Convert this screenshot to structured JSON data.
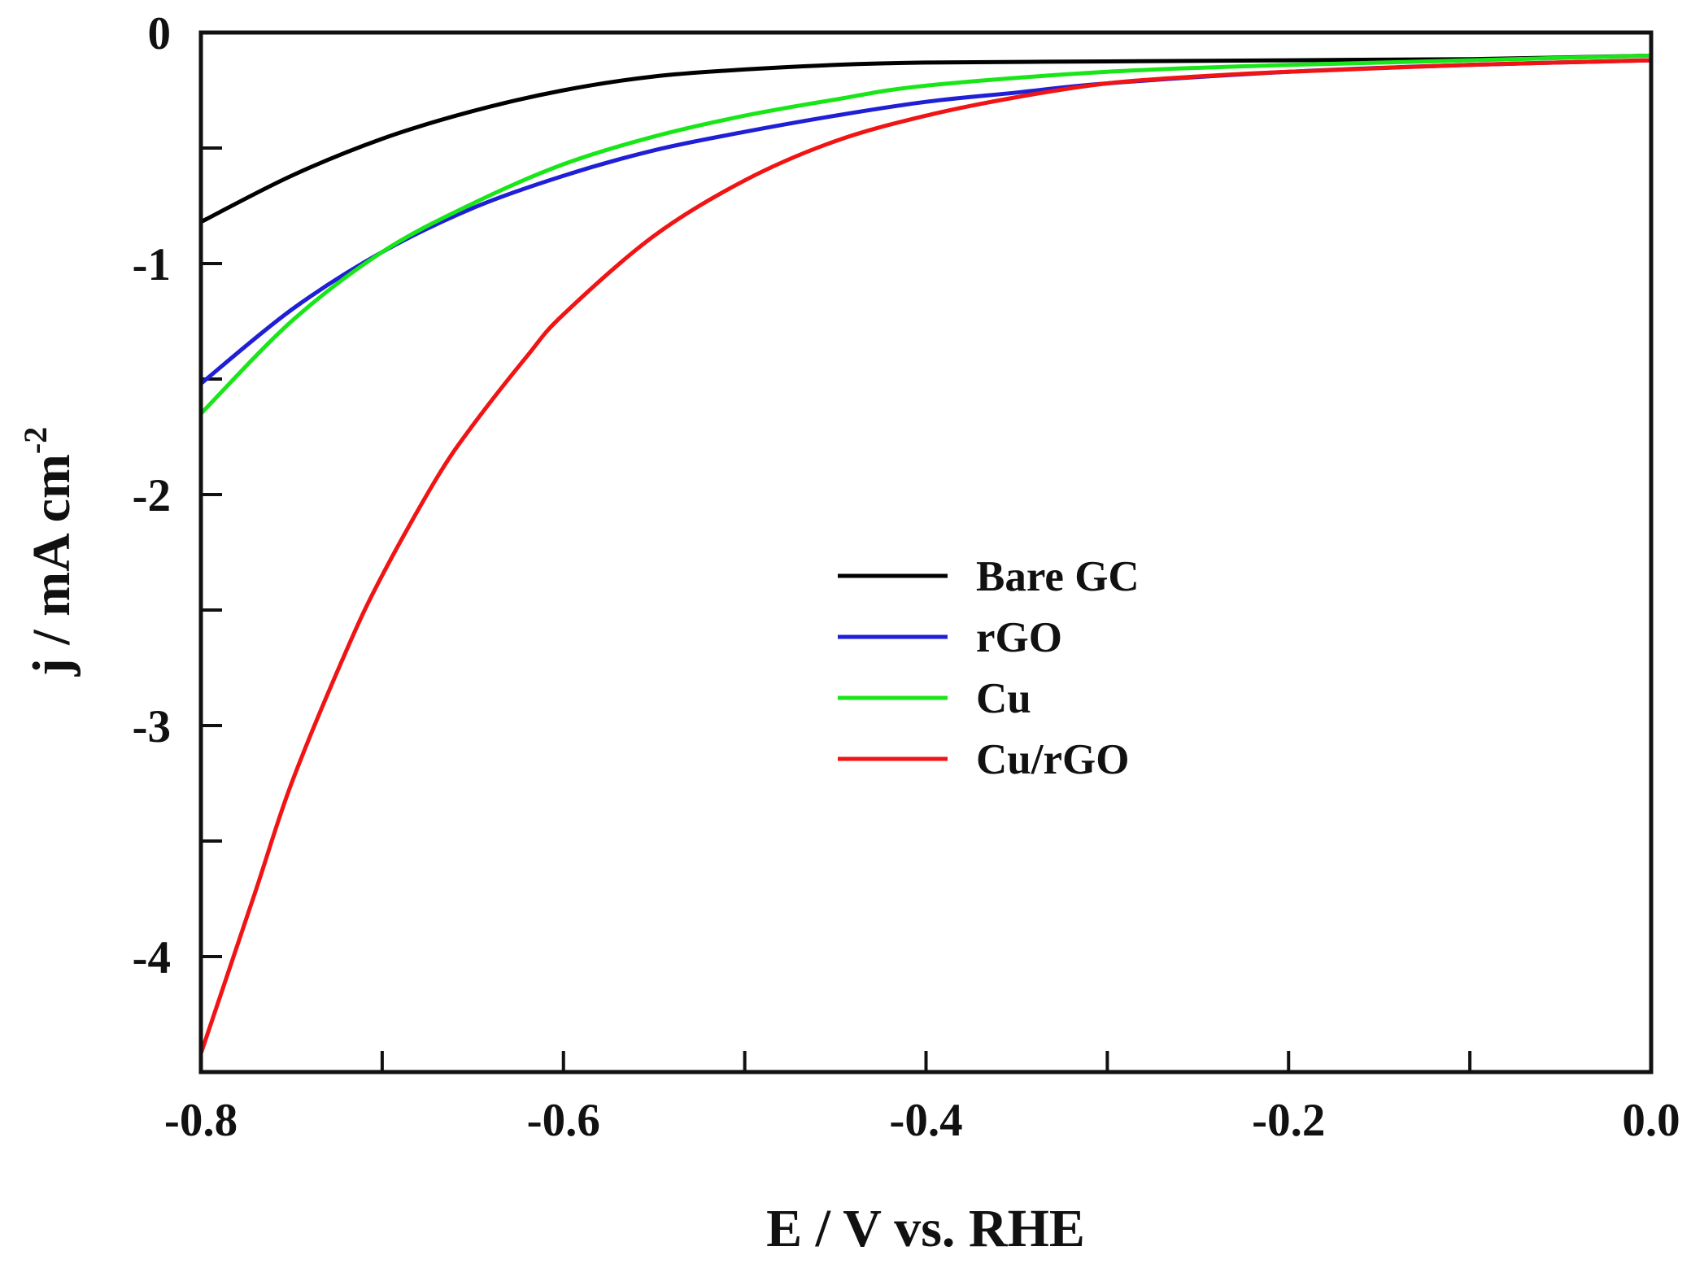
{
  "chart_data": {
    "type": "line",
    "title": "",
    "xlabel": "E / V vs. RHE",
    "ylabel": "j / mA cm",
    "ylabel_superscript": "-2",
    "xlim": [
      -0.8,
      0.0
    ],
    "ylim": [
      -4.5,
      0.0
    ],
    "x_ticks": [
      -0.8,
      -0.6,
      -0.4,
      -0.2,
      0.0
    ],
    "x_tick_labels": [
      "-0.8",
      "-0.6",
      "-0.4",
      "-0.2",
      "0.0"
    ],
    "y_ticks": [
      0,
      -1,
      -2,
      -3,
      -4
    ],
    "y_tick_labels": [
      "0",
      "-1",
      "-2",
      "-3",
      "-4"
    ],
    "grid": false,
    "legend_position": "center",
    "series": [
      {
        "name": "Bare GC",
        "color": "#000000",
        "x": [
          -0.8,
          -0.75,
          -0.7,
          -0.65,
          -0.6,
          -0.55,
          -0.5,
          -0.45,
          -0.4,
          -0.3,
          -0.2,
          -0.1,
          0.0
        ],
        "y": [
          -0.82,
          -0.62,
          -0.46,
          -0.34,
          -0.25,
          -0.19,
          -0.16,
          -0.14,
          -0.13,
          -0.125,
          -0.12,
          -0.115,
          -0.1
        ]
      },
      {
        "name": "rGO",
        "color": "#1f1fd6",
        "x": [
          -0.8,
          -0.75,
          -0.7,
          -0.65,
          -0.6,
          -0.55,
          -0.5,
          -0.45,
          -0.4,
          -0.35,
          -0.3,
          -0.2,
          -0.1,
          0.0
        ],
        "y": [
          -1.52,
          -1.2,
          -0.95,
          -0.76,
          -0.62,
          -0.51,
          -0.43,
          -0.36,
          -0.3,
          -0.26,
          -0.22,
          -0.17,
          -0.14,
          -0.12
        ]
      },
      {
        "name": "Cu",
        "color": "#19e619",
        "x": [
          -0.8,
          -0.75,
          -0.7,
          -0.65,
          -0.6,
          -0.55,
          -0.5,
          -0.45,
          -0.4,
          -0.3,
          -0.2,
          -0.1,
          0.0
        ],
        "y": [
          -1.65,
          -1.25,
          -0.95,
          -0.74,
          -0.57,
          -0.45,
          -0.36,
          -0.29,
          -0.23,
          -0.17,
          -0.14,
          -0.12,
          -0.1
        ]
      },
      {
        "name": "Cu/rGO",
        "color": "#f01414",
        "x": [
          -0.8,
          -0.77,
          -0.75,
          -0.72,
          -0.7,
          -0.67,
          -0.65,
          -0.62,
          -0.6,
          -0.55,
          -0.5,
          -0.45,
          -0.4,
          -0.35,
          -0.3,
          -0.25,
          -0.2,
          -0.1,
          0.0
        ],
        "y": [
          -4.42,
          -3.72,
          -3.25,
          -2.68,
          -2.35,
          -1.93,
          -1.7,
          -1.4,
          -1.22,
          -0.88,
          -0.64,
          -0.47,
          -0.36,
          -0.28,
          -0.22,
          -0.19,
          -0.17,
          -0.14,
          -0.12
        ]
      }
    ]
  }
}
